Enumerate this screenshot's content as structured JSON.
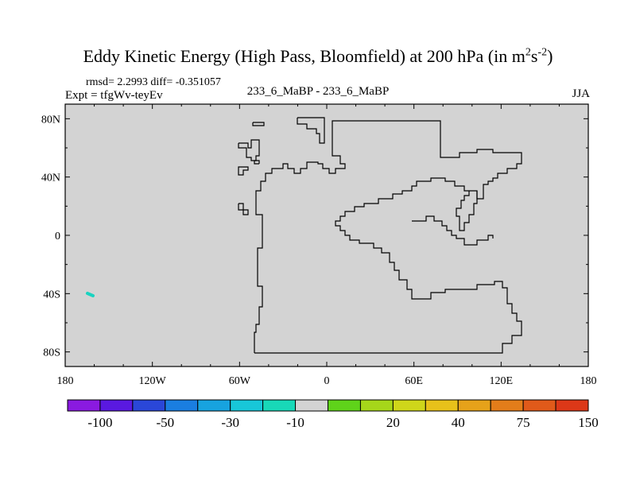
{
  "title": {
    "main": "Eddy Kinetic Energy (High Pass, Bloomfield) at 200 hPa (in m",
    "sup1": "2",
    "mid": "s",
    "sup2": "-2",
    "close": ")"
  },
  "subtitle": {
    "rmsd": "rmsd= 2.2993 diff= -0.351057",
    "expt": "Expt = tfgWv-teyEv",
    "center": "233_6_MaBP - 233_6_MaBP",
    "season": "JJA"
  },
  "colors": {
    "background": "#d3d3d3",
    "coast": "#000000",
    "feature": "#19d3c0"
  },
  "chart_data": {
    "type": "heatmap",
    "title": "Eddy Kinetic Energy (High Pass, Bloomfield) at 200 hPa (in m^2 s^-2)",
    "x_ticks": [
      "180",
      "120W",
      "60W",
      "0",
      "60E",
      "120E",
      "180"
    ],
    "x_tick_values": [
      -180,
      -120,
      -60,
      0,
      60,
      120,
      180
    ],
    "y_ticks": [
      "80N",
      "40N",
      "0",
      "40S",
      "80S"
    ],
    "y_tick_values": [
      80,
      40,
      0,
      -40,
      -80
    ],
    "xlim": [
      -180,
      180
    ],
    "ylim": [
      -90,
      90
    ],
    "field_value": "near zero (difference field, uniform grey)",
    "feature_segment": {
      "lon": [
        -164,
        -160
      ],
      "lat": [
        -40,
        -41
      ],
      "color": "#19d3c0"
    },
    "colorbar": {
      "colors": [
        "#8a1ae0",
        "#5a19e0",
        "#2a47d8",
        "#1a7ee0",
        "#17a3df",
        "#18c7d8",
        "#18d8b8",
        "#d3d3d3",
        "#5fd31a",
        "#a6d61a",
        "#cfd61a",
        "#e8c11a",
        "#e6a21a",
        "#e37d1a",
        "#e05a1a",
        "#dc3818"
      ],
      "labels": [
        "-100",
        "-50",
        "-30",
        "-10",
        "20",
        "40",
        "75",
        "150"
      ],
      "label_boundaries": [
        1,
        3,
        5,
        7,
        10,
        12,
        14,
        16
      ]
    }
  }
}
